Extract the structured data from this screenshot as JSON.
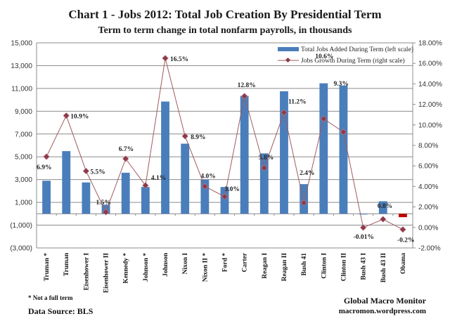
{
  "chart_data": {
    "type": "bar",
    "title": "Chart 1 - Jobs 2012:  Total Job Creation By Presidential Term",
    "subtitle": "Term to term change in total nonfarm payrolls, in thousands",
    "categories": [
      "Truman *",
      "Truman",
      "Eisenhower I",
      "Eisenhower II",
      "Kennedy *",
      "Johnson *",
      "Johnson",
      "Nixon I",
      "Nixon II *",
      "Ford *",
      "Carter",
      "Reagan I",
      "Reagan II",
      "Bush 41",
      "Clinton I",
      "Clinton II",
      "Bush 43  I",
      "Bush 43  II",
      "Obama"
    ],
    "series": [
      {
        "name": "Total Jobs Added During Term  (left scale)",
        "type": "bar",
        "axis": "left",
        "color": "#4a7ebb",
        "highlight_color": "#c00000",
        "highlight_index": 18,
        "values": [
          2900,
          5500,
          2750,
          800,
          3600,
          2350,
          9850,
          6150,
          3000,
          2350,
          10350,
          5300,
          10750,
          2600,
          11450,
          11250,
          -50,
          1100,
          -300
        ]
      },
      {
        "name": "Jobs Growth During Term (right scale)",
        "type": "line",
        "axis": "right",
        "color": "#a05a5f",
        "marker_color": "#8b3a4a",
        "values": [
          6.9,
          10.9,
          5.5,
          1.5,
          6.7,
          4.1,
          16.5,
          8.9,
          4.0,
          3.0,
          12.8,
          5.8,
          11.2,
          2.4,
          10.6,
          9.3,
          -0.01,
          0.8,
          -0.2
        ],
        "labels": [
          "6.9%",
          "10.9%",
          "5.5%",
          "1.5%",
          "6.7%",
          "4.1%",
          "16.5%",
          "8.9%",
          "4.0%",
          "3.0%",
          "12.8%",
          "5.8%",
          "11.2%",
          "2.4%",
          "10.6%",
          "9.3%",
          "-0.01%",
          "0.8%",
          "-0.2%"
        ]
      }
    ],
    "left_axis": {
      "ylim": [
        -3000,
        15000
      ],
      "ticks": [
        15000,
        13000,
        11000,
        9000,
        7000,
        5000,
        3000,
        1000,
        -1000,
        -3000
      ],
      "tick_labels": [
        "15,000",
        "13,000",
        "11,000",
        "9,000",
        "7,000",
        "5,000",
        "3,000",
        "1,000",
        "(1,000)",
        "(3,000)"
      ]
    },
    "right_axis": {
      "ylim": [
        -2,
        18
      ],
      "ticks": [
        18,
        16,
        14,
        12,
        10,
        8,
        6,
        4,
        2,
        0,
        -2
      ],
      "tick_labels": [
        "18.00%",
        "16.00%",
        "14.00%",
        "12.00%",
        "10.00%",
        "8.00%",
        "6.00%",
        "4.00%",
        "2.00%",
        "0.00%",
        "-2.00%"
      ]
    },
    "grid": true,
    "legend": "top-right",
    "xlabel": "",
    "ylabel": ""
  },
  "footer": {
    "note": "* Not a full term",
    "source": "Data Source:  BLS",
    "brand": "Global Macro Monitor",
    "url": "macromon.wordpress.com"
  }
}
